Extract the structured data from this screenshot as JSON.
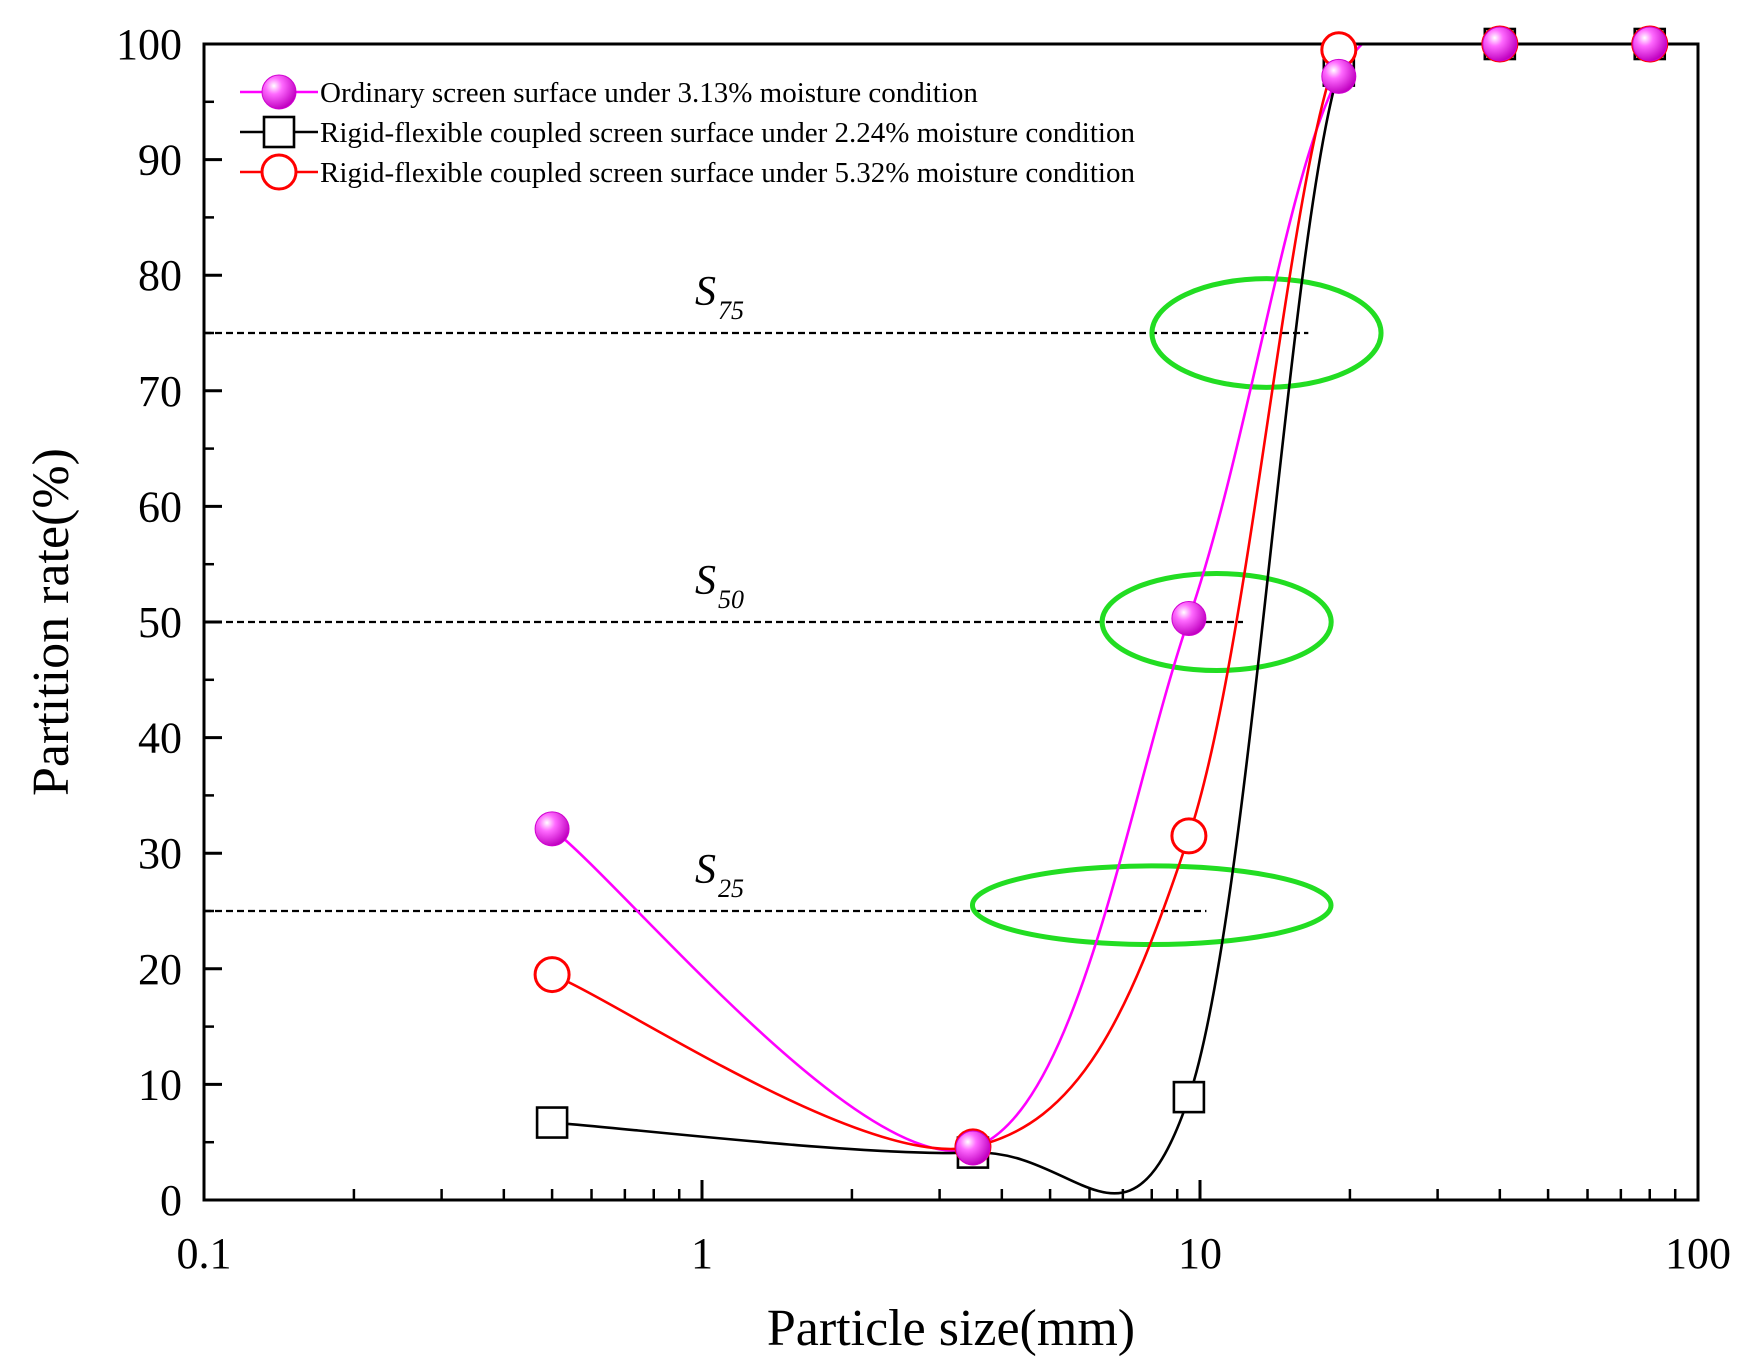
{
  "chart_data": {
    "type": "line",
    "xscale": "log",
    "xlabel": "Particle size(mm)",
    "ylabel": "Partition rate(%)",
    "xlim": [
      0.1,
      100
    ],
    "ylim": [
      0,
      100
    ],
    "xticks": [
      0.1,
      1,
      10,
      100
    ],
    "xtick_labels": [
      "0.1",
      "1",
      "10",
      "100"
    ],
    "yticks": [
      0,
      10,
      20,
      30,
      40,
      50,
      60,
      70,
      80,
      90,
      100
    ],
    "ytick_labels": [
      "0",
      "10",
      "20",
      "30",
      "40",
      "50",
      "60",
      "70",
      "80",
      "90",
      "100"
    ],
    "legend_position": "top-left",
    "series": [
      {
        "name": "Ordinary screen surface under 3.13% moisture condition",
        "color": "#ff00ff",
        "marker": "filled-sphere",
        "x": [
          0.5,
          3.5,
          9.5,
          19,
          40,
          80
        ],
        "values": [
          32.1,
          4.5,
          50.3,
          97.2,
          100,
          100
        ]
      },
      {
        "name": "Rigid-flexible coupled screen surface under 2.24% moisture condition",
        "color": "#000000",
        "marker": "open-square",
        "x": [
          0.5,
          3.5,
          9.5,
          19,
          40,
          80
        ],
        "values": [
          6.7,
          4.1,
          8.9,
          97.7,
          100,
          100
        ]
      },
      {
        "name": "Rigid-flexible coupled screen surface under 5.32% moisture condition",
        "color": "#ff0000",
        "marker": "open-circle",
        "x": [
          0.5,
          3.5,
          9.5,
          19,
          40,
          80
        ],
        "values": [
          19.5,
          4.6,
          31.5,
          99.5,
          100,
          100
        ]
      }
    ],
    "reference_lines": [
      {
        "label": "S",
        "sub": "75",
        "y": 75,
        "x_from": 0.1,
        "x_to": 16.5
      },
      {
        "label": "S",
        "sub": "50",
        "y": 50,
        "x_from": 0.1,
        "x_to": 12.2
      },
      {
        "label": "S",
        "sub": "25",
        "y": 25,
        "x_from": 0.1,
        "x_to": 10.3
      }
    ],
    "highlight_ellipses": [
      {
        "cx": 13.6,
        "cy": 75,
        "rx_decades": 0.23,
        "ry": 4.7,
        "color": "#22dd22"
      },
      {
        "cx": 10.8,
        "cy": 50,
        "rx_decades": 0.23,
        "ry": 4.2,
        "color": "#22dd22"
      },
      {
        "cx": 8.0,
        "cy": 25.5,
        "rx_decades": 0.36,
        "ry": 3.4,
        "color": "#22dd22"
      }
    ]
  }
}
